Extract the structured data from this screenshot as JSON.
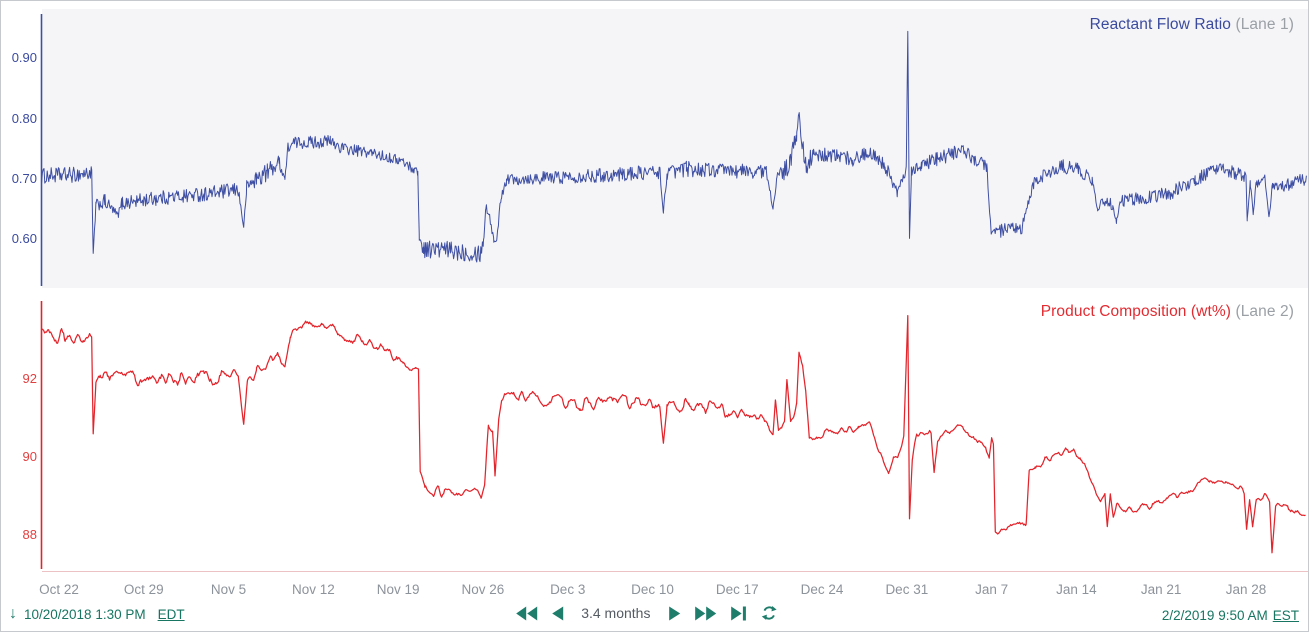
{
  "toolbar": {
    "start_time": "10/20/2018 1:30 PM",
    "start_tz": "EDT",
    "end_time": "2/2/2019 9:50 AM",
    "end_tz": "EST",
    "range_label": "3.4 months",
    "accent_color": "#1e7d6b",
    "icons": {
      "start_marker": "down-arrow",
      "rewind": "double-left-triangles",
      "step_back": "left-triangle",
      "step_forward": "right-triangle",
      "fast_forward": "double-right-triangles",
      "skip_to_end": "right-triangle-with-bar",
      "refresh": "circular-arrows"
    }
  },
  "x_axis": {
    "labels": [
      "Oct 22",
      "Oct 29",
      "Nov 5",
      "Nov 12",
      "Nov 19",
      "Nov 26",
      "Dec 3",
      "Dec 10",
      "Dec 17",
      "Dec 24",
      "Dec 31",
      "Jan 7",
      "Jan 14",
      "Jan 21",
      "Jan 28"
    ],
    "day_offsets": [
      0,
      7,
      14,
      21,
      28,
      35,
      42,
      49,
      56,
      63,
      70,
      77,
      84,
      91,
      98
    ],
    "label_color": "#8d939b"
  },
  "chart_data": [
    {
      "type": "line",
      "title": "Reactant Flow Ratio",
      "lane_label": "(Lane 1)",
      "color": "#3e4fa3",
      "bg": "#f5f5f7",
      "noise_style": "fuzzy",
      "ylim": [
        0.523,
        0.973
      ],
      "y_ticks": [
        {
          "label": "0.90",
          "value": 0.9
        },
        {
          "label": "0.80",
          "value": 0.8
        },
        {
          "label": "0.70",
          "value": 0.7
        },
        {
          "label": "0.60",
          "value": 0.6
        }
      ],
      "x_unit": "days since Oct 22 2018",
      "keypoints": [
        [
          -1.49,
          0.705,
          0.013
        ],
        [
          1.2,
          0.707,
          0.013
        ],
        [
          2.7,
          0.71,
          0.012
        ],
        [
          2.82,
          0.575,
          0.002
        ],
        [
          3.05,
          0.657,
          0.009
        ],
        [
          3.8,
          0.662,
          0.013
        ],
        [
          4.87,
          0.64,
          0.005
        ],
        [
          5.2,
          0.66,
          0.012
        ],
        [
          8,
          0.668,
          0.012
        ],
        [
          12,
          0.675,
          0.012
        ],
        [
          14.8,
          0.682,
          0.012
        ],
        [
          15.25,
          0.62,
          0.002
        ],
        [
          15.5,
          0.688,
          0.01
        ],
        [
          16.3,
          0.7,
          0.016
        ],
        [
          17.2,
          0.712,
          0.015
        ],
        [
          18.2,
          0.728,
          0.012
        ],
        [
          18.65,
          0.7,
          0.006
        ],
        [
          18.9,
          0.752,
          0.009
        ],
        [
          19.4,
          0.76,
          0.01
        ],
        [
          22.4,
          0.762,
          0.011
        ],
        [
          23.5,
          0.75,
          0.01
        ],
        [
          25.8,
          0.743,
          0.009
        ],
        [
          28.3,
          0.73,
          0.008
        ],
        [
          29.3,
          0.716,
          0.008
        ],
        [
          29.62,
          0.712,
          0.006
        ],
        [
          29.75,
          0.6,
          0.003
        ],
        [
          30.1,
          0.585,
          0.015
        ],
        [
          34.8,
          0.578,
          0.016
        ],
        [
          35.05,
          0.598,
          0.008
        ],
        [
          35.25,
          0.655,
          0.006
        ],
        [
          35.6,
          0.635,
          0.01
        ],
        [
          35.9,
          0.597,
          0.004
        ],
        [
          36.15,
          0.6,
          0.004
        ],
        [
          36.5,
          0.672,
          0.008
        ],
        [
          36.95,
          0.7,
          0.01
        ],
        [
          40,
          0.702,
          0.011
        ],
        [
          43.5,
          0.705,
          0.011
        ],
        [
          46.5,
          0.708,
          0.012
        ],
        [
          49.6,
          0.712,
          0.012
        ],
        [
          49.9,
          0.645,
          0.003
        ],
        [
          50.2,
          0.71,
          0.011
        ],
        [
          51.8,
          0.717,
          0.013
        ],
        [
          54.5,
          0.714,
          0.012
        ],
        [
          58.4,
          0.712,
          0.012
        ],
        [
          58.95,
          0.652,
          0.003
        ],
        [
          59.25,
          0.7,
          0.01
        ],
        [
          60.3,
          0.722,
          0.018
        ],
        [
          60.9,
          0.773,
          0.012
        ],
        [
          61.1,
          0.81,
          0.003
        ],
        [
          61.35,
          0.757,
          0.014
        ],
        [
          61.7,
          0.726,
          0.018
        ],
        [
          62.3,
          0.737,
          0.014
        ],
        [
          63.5,
          0.74,
          0.012
        ],
        [
          65.5,
          0.733,
          0.012
        ],
        [
          67.3,
          0.745,
          0.013
        ],
        [
          68.2,
          0.722,
          0.012
        ],
        [
          69.2,
          0.678,
          0.008
        ],
        [
          69.7,
          0.7,
          0.009
        ],
        [
          69.95,
          0.715,
          0.006
        ],
        [
          70.08,
          0.945,
          0.002
        ],
        [
          70.22,
          0.6,
          0.002
        ],
        [
          70.38,
          0.713,
          0.008
        ],
        [
          71.2,
          0.725,
          0.012
        ],
        [
          72.5,
          0.731,
          0.013
        ],
        [
          74.4,
          0.748,
          0.012
        ],
        [
          75.6,
          0.733,
          0.012
        ],
        [
          76.6,
          0.722,
          0.01
        ],
        [
          76.95,
          0.612,
          0.004
        ],
        [
          77.4,
          0.613,
          0.012
        ],
        [
          79.5,
          0.616,
          0.013
        ],
        [
          79.95,
          0.655,
          0.006
        ],
        [
          80.5,
          0.694,
          0.009
        ],
        [
          81.6,
          0.71,
          0.012
        ],
        [
          83.0,
          0.72,
          0.013
        ],
        [
          84.2,
          0.716,
          0.012
        ],
        [
          85.3,
          0.697,
          0.009
        ],
        [
          85.75,
          0.648,
          0.004
        ],
        [
          86.2,
          0.666,
          0.009
        ],
        [
          87.0,
          0.658,
          0.011
        ],
        [
          87.3,
          0.628,
          0.003
        ],
        [
          87.6,
          0.663,
          0.009
        ],
        [
          89.3,
          0.668,
          0.012
        ],
        [
          91.8,
          0.677,
          0.012
        ],
        [
          93.8,
          0.698,
          0.012
        ],
        [
          95.3,
          0.714,
          0.012
        ],
        [
          96.8,
          0.712,
          0.012
        ],
        [
          98.0,
          0.703,
          0.01
        ],
        [
          98.1,
          0.632,
          0.003
        ],
        [
          98.35,
          0.695,
          0.007
        ],
        [
          98.6,
          0.641,
          0.003
        ],
        [
          98.85,
          0.694,
          0.008
        ],
        [
          99.6,
          0.699,
          0.01
        ],
        [
          99.9,
          0.637,
          0.002
        ],
        [
          100.2,
          0.69,
          0.009
        ],
        [
          101.6,
          0.69,
          0.011
        ],
        [
          102.8,
          0.7,
          0.011
        ],
        [
          103.3,
          0.713,
          0.006
        ]
      ]
    },
    {
      "type": "line",
      "title": "Product Composition (wt%)",
      "lane_label": "(Lane 2)",
      "color": "#e3242b",
      "bg": "#ffffff",
      "noise_style": "smooth",
      "ylim": [
        87.13,
        94.0
      ],
      "y_ticks": [
        {
          "label": "92",
          "value": 92
        },
        {
          "label": "90",
          "value": 90
        },
        {
          "label": "88",
          "value": 88
        }
      ],
      "x_unit": "days since Oct 22 2018",
      "keypoints": [
        [
          -1.49,
          93.05,
          0.18
        ],
        [
          0.5,
          93.1,
          0.17
        ],
        [
          2.0,
          93.0,
          0.17
        ],
        [
          2.7,
          93.05,
          0.15
        ],
        [
          2.82,
          90.6,
          0.03
        ],
        [
          3.05,
          91.9,
          0.08
        ],
        [
          3.4,
          92.05,
          0.14
        ],
        [
          6,
          92.0,
          0.18
        ],
        [
          9,
          92.05,
          0.19
        ],
        [
          12,
          92.05,
          0.19
        ],
        [
          14.8,
          92.12,
          0.16
        ],
        [
          15.25,
          90.85,
          0.03
        ],
        [
          15.55,
          91.95,
          0.1
        ],
        [
          16.3,
          92.15,
          0.16
        ],
        [
          17.4,
          92.45,
          0.16
        ],
        [
          18.3,
          92.6,
          0.14
        ],
        [
          18.65,
          92.35,
          0.06
        ],
        [
          19.1,
          93.05,
          0.12
        ],
        [
          20.1,
          93.4,
          0.1
        ],
        [
          21.7,
          93.45,
          0.1
        ],
        [
          23,
          93.2,
          0.13
        ],
        [
          25,
          92.95,
          0.14
        ],
        [
          27,
          92.75,
          0.14
        ],
        [
          28.4,
          92.45,
          0.13
        ],
        [
          29.4,
          92.25,
          0.1
        ],
        [
          29.68,
          92.2,
          0.05
        ],
        [
          29.82,
          89.6,
          0.03
        ],
        [
          30.2,
          89.15,
          0.12
        ],
        [
          33,
          89.1,
          0.12
        ],
        [
          34.85,
          89.05,
          0.1
        ],
        [
          35.15,
          89.3,
          0.06
        ],
        [
          35.45,
          90.9,
          0.1
        ],
        [
          35.8,
          90.6,
          0.08
        ],
        [
          36.0,
          89.5,
          0.04
        ],
        [
          36.3,
          91.0,
          0.06
        ],
        [
          36.55,
          91.55,
          0.08
        ],
        [
          37.5,
          91.55,
          0.14
        ],
        [
          40,
          91.45,
          0.16
        ],
        [
          43,
          91.35,
          0.16
        ],
        [
          46,
          91.4,
          0.16
        ],
        [
          49.6,
          91.35,
          0.13
        ],
        [
          49.9,
          90.35,
          0.03
        ],
        [
          50.2,
          91.25,
          0.12
        ],
        [
          52,
          91.35,
          0.15
        ],
        [
          55,
          91.2,
          0.14
        ],
        [
          57,
          91.05,
          0.13
        ],
        [
          58.5,
          90.9,
          0.11
        ],
        [
          58.95,
          90.55,
          0.05
        ],
        [
          59.15,
          91.45,
          0.04
        ],
        [
          59.4,
          90.65,
          0.08
        ],
        [
          59.9,
          90.85,
          0.1
        ],
        [
          60.1,
          91.95,
          0.04
        ],
        [
          60.4,
          90.9,
          0.08
        ],
        [
          60.9,
          91.3,
          0.1
        ],
        [
          61.1,
          92.65,
          0.04
        ],
        [
          61.4,
          92.25,
          0.08
        ],
        [
          61.65,
          91.65,
          0.08
        ],
        [
          61.95,
          90.45,
          0.06
        ],
        [
          62.6,
          90.55,
          0.1
        ],
        [
          64,
          90.68,
          0.1
        ],
        [
          66,
          90.75,
          0.1
        ],
        [
          66.9,
          90.85,
          0.11
        ],
        [
          67.6,
          90.3,
          0.08
        ],
        [
          68.1,
          89.85,
          0.1
        ],
        [
          68.5,
          89.6,
          0.09
        ],
        [
          68.9,
          89.9,
          0.09
        ],
        [
          69.3,
          90.1,
          0.11
        ],
        [
          69.75,
          90.55,
          0.07
        ],
        [
          70.08,
          93.6,
          0.03
        ],
        [
          70.22,
          88.4,
          0.03
        ],
        [
          70.45,
          89.9,
          0.05
        ],
        [
          70.8,
          90.65,
          0.09
        ],
        [
          72.0,
          90.6,
          0.11
        ],
        [
          72.25,
          89.65,
          0.05
        ],
        [
          72.55,
          90.45,
          0.09
        ],
        [
          74.2,
          90.8,
          0.11
        ],
        [
          75.5,
          90.5,
          0.11
        ],
        [
          76.5,
          90.25,
          0.1
        ],
        [
          76.8,
          90.0,
          0.07
        ],
        [
          77.0,
          90.5,
          0.04
        ],
        [
          77.15,
          90.35,
          0.03
        ],
        [
          77.3,
          88.1,
          0.03
        ],
        [
          77.7,
          88.05,
          0.09
        ],
        [
          79.2,
          88.25,
          0.09
        ],
        [
          79.85,
          88.3,
          0.07
        ],
        [
          80.1,
          89.65,
          0.04
        ],
        [
          80.6,
          89.75,
          0.09
        ],
        [
          81.4,
          89.9,
          0.09
        ],
        [
          82.4,
          90.05,
          0.09
        ],
        [
          83.4,
          90.15,
          0.1
        ],
        [
          84.3,
          90.0,
          0.09
        ],
        [
          85.0,
          89.6,
          0.09
        ],
        [
          85.6,
          89.1,
          0.07
        ],
        [
          86.0,
          88.85,
          0.09
        ],
        [
          86.35,
          89.05,
          0.07
        ],
        [
          86.55,
          88.2,
          0.03
        ],
        [
          86.8,
          89.0,
          0.05
        ],
        [
          87.05,
          88.5,
          0.04
        ],
        [
          87.35,
          88.8,
          0.07
        ],
        [
          88.5,
          88.62,
          0.09
        ],
        [
          90,
          88.75,
          0.09
        ],
        [
          92,
          89.0,
          0.09
        ],
        [
          93.6,
          89.2,
          0.09
        ],
        [
          95,
          89.45,
          0.09
        ],
        [
          96.3,
          89.4,
          0.09
        ],
        [
          97.5,
          89.2,
          0.09
        ],
        [
          97.85,
          89.05,
          0.06
        ],
        [
          98.05,
          88.15,
          0.02
        ],
        [
          98.3,
          88.9,
          0.05
        ],
        [
          98.55,
          88.2,
          0.03
        ],
        [
          98.85,
          88.9,
          0.06
        ],
        [
          99.6,
          89.05,
          0.08
        ],
        [
          99.95,
          88.8,
          0.06
        ],
        [
          100.15,
          87.55,
          0.02
        ],
        [
          100.45,
          88.75,
          0.06
        ],
        [
          101.4,
          88.75,
          0.1
        ],
        [
          102.4,
          88.5,
          0.1
        ],
        [
          103.0,
          88.55,
          0.08
        ],
        [
          103.35,
          88.75,
          0.05
        ]
      ]
    }
  ]
}
